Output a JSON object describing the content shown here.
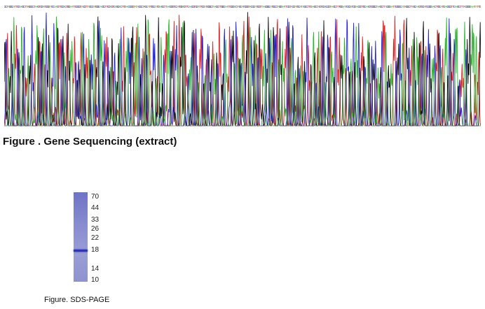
{
  "figure1": {
    "caption": "Figure . Gene Sequencing (extract)",
    "trace_colors": {
      "A": "#2cb52c",
      "C": "#2020d8",
      "G": "#111111",
      "T": "#e02020"
    },
    "sequence": "GCTAGGCATTCGAAGCTTAGGCCTAAGTCGATCGGATCCAAGTTCGACTGGAATTCGCGTACGTTAGCCATGGCAAGCTTCGAGTCAGGACTTGAACCGGTATACGCTAGCATTGCCATGAAGCTTAACGGTCCATGGAGTTCAACGTCGATTCGATCGGCTAAGCTTGGCAATTCGGACTAGCATCGGTACCGATCGTTAACGGCATGCCTAGGAATTCGTACGATGCATAGCCTTGAAGCTAGTCGACCGTAAGCTTTGGAATCCGATCGAACGTTGCAAGTCGGCTAAGCTTACGGAATTCGGCCATAGGCTTAGCAAGTCGATCCGGAACTTGCATGAAGCGTTCAAGCTTTACGGGAAATATTG"
  },
  "figure2": {
    "caption": "Figure. SDS-PAGE",
    "gel_colors": {
      "lane": "#8a8ed1",
      "band": "#2f33b8"
    },
    "markers": [
      "70",
      "44",
      "33",
      "26",
      "22",
      "18",
      "14",
      "10"
    ],
    "band_kda": 18
  }
}
